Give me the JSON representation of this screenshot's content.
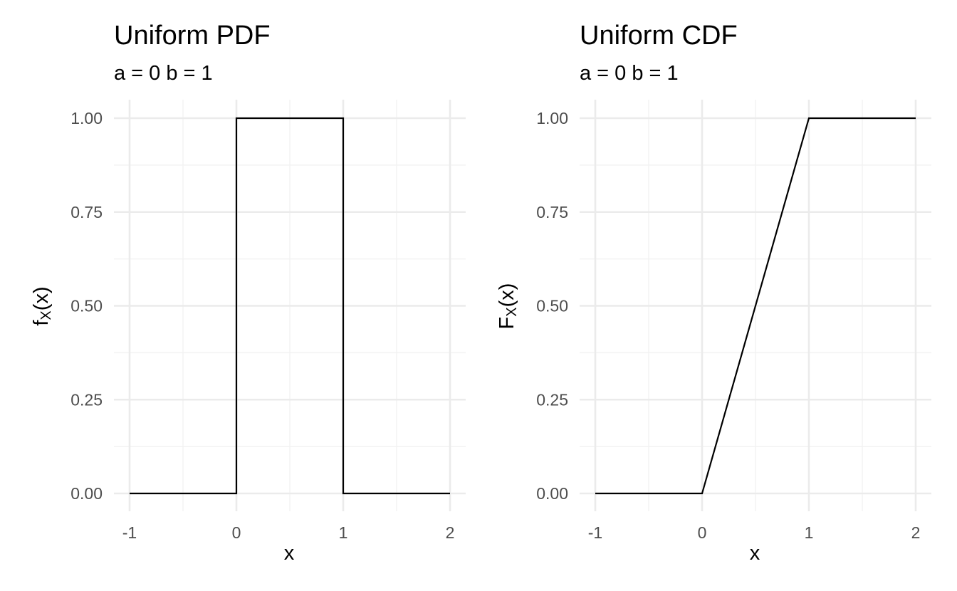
{
  "charts": [
    {
      "title": "Uniform PDF",
      "subtitle": "a = 0 b = 1",
      "ylabel_main": "f",
      "ylabel_sub": "X",
      "ylabel_tail": "(x)",
      "xlabel": "x"
    },
    {
      "title": "Uniform CDF",
      "subtitle": "a = 0 b = 1",
      "ylabel_main": "F",
      "ylabel_sub": "X",
      "ylabel_tail": "(x)",
      "xlabel": "x"
    }
  ],
  "colors": {
    "line": "#000000",
    "grid_major": "#ebebeb",
    "grid_minor": "#f2f2f2",
    "tick_text": "#4d4d4d"
  },
  "chart_data": [
    {
      "type": "line",
      "title": "Uniform PDF",
      "subtitle": "a = 0 b = 1",
      "xlabel": "x",
      "ylabel": "fX(x)",
      "x_ticks": [
        "-1",
        "0",
        "1",
        "2"
      ],
      "x_tick_values": [
        -1,
        0,
        1,
        2
      ],
      "y_ticks": [
        "0.00",
        "0.25",
        "0.50",
        "0.75",
        "1.00"
      ],
      "y_tick_values": [
        0,
        0.25,
        0.5,
        0.75,
        1
      ],
      "xlim": [
        -1,
        2
      ],
      "ylim": [
        0,
        1
      ],
      "grid": true,
      "series": [
        {
          "x": [
            -1,
            0,
            0,
            1,
            1,
            2
          ],
          "y": [
            0,
            0,
            1,
            1,
            0,
            0
          ]
        }
      ]
    },
    {
      "type": "line",
      "title": "Uniform CDF",
      "subtitle": "a = 0 b = 1",
      "xlabel": "x",
      "ylabel": "FX(x)",
      "x_ticks": [
        "-1",
        "0",
        "1",
        "2"
      ],
      "x_tick_values": [
        -1,
        0,
        1,
        2
      ],
      "y_ticks": [
        "0.00",
        "0.25",
        "0.50",
        "0.75",
        "1.00"
      ],
      "y_tick_values": [
        0,
        0.25,
        0.5,
        0.75,
        1
      ],
      "xlim": [
        -1,
        2
      ],
      "ylim": [
        0,
        1
      ],
      "grid": true,
      "series": [
        {
          "x": [
            -1,
            0,
            1,
            2
          ],
          "y": [
            0,
            0,
            1,
            1
          ]
        }
      ]
    }
  ]
}
